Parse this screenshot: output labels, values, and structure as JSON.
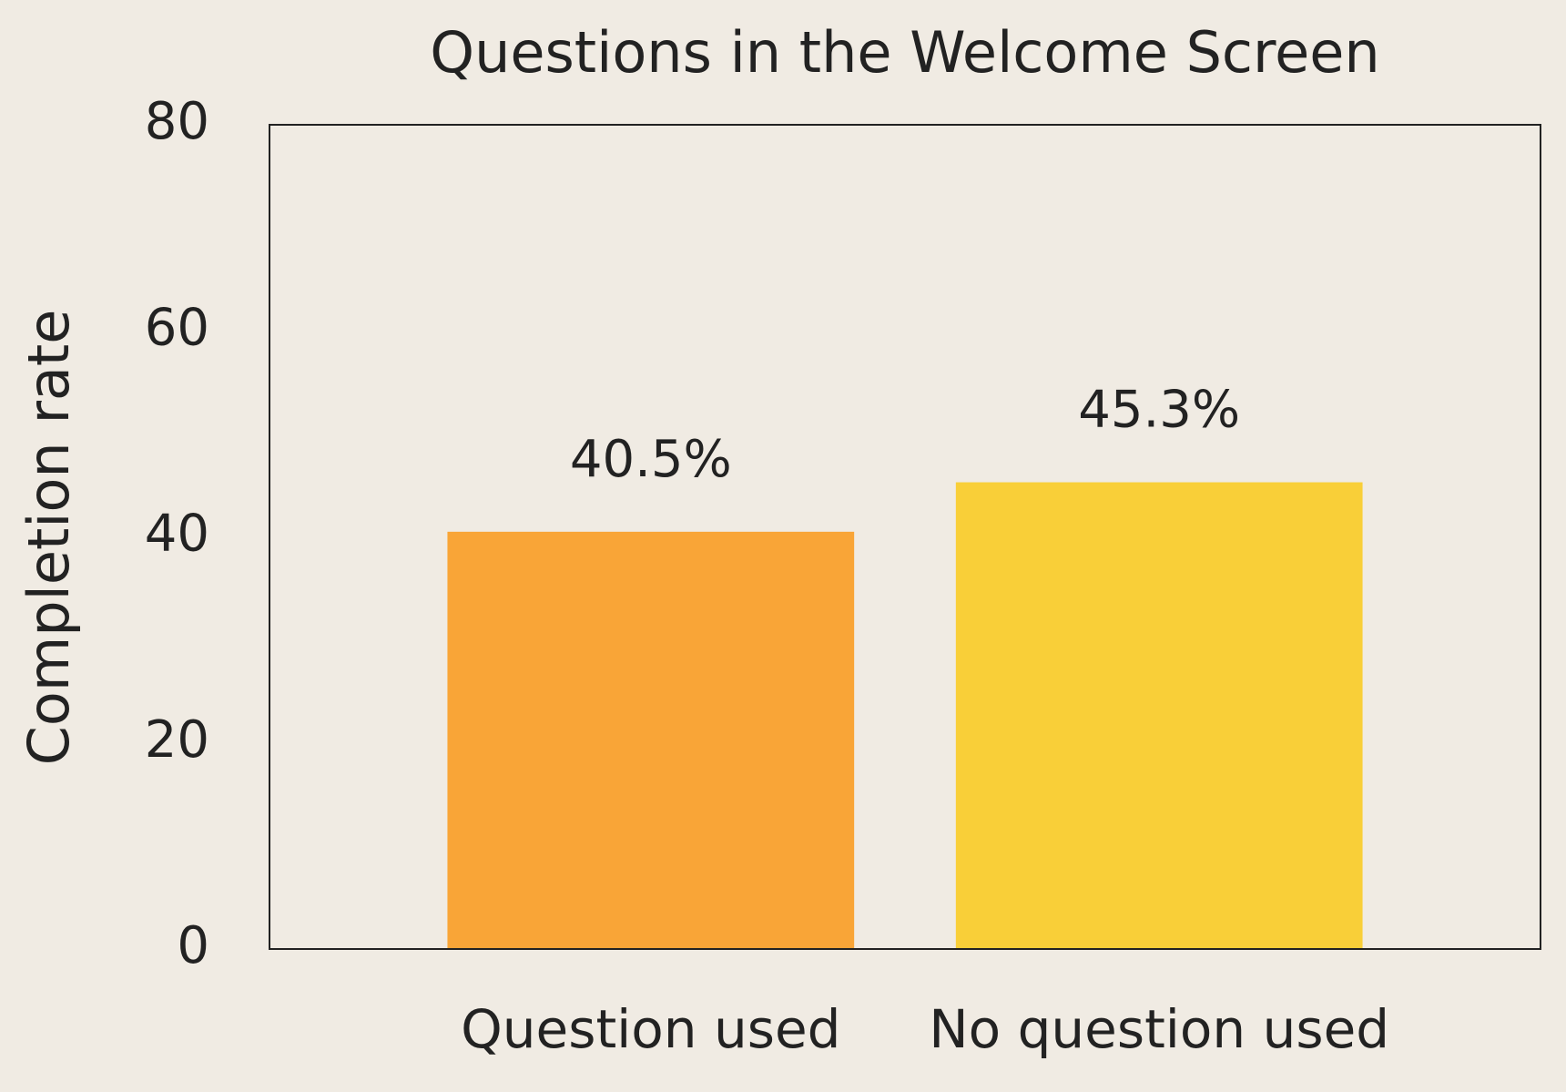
{
  "chart_data": {
    "type": "bar",
    "title": "Questions in the Welcome Screen",
    "y_label": "Completion rate",
    "categories": [
      "Question used",
      "No question used"
    ],
    "values": [
      40.5,
      45.3
    ],
    "value_labels": [
      "40.5%",
      "45.3%"
    ],
    "colors": [
      "#f9a537",
      "#f9cf38"
    ],
    "ylim": [
      0,
      80
    ],
    "yticks": [
      0,
      20,
      40,
      60,
      80
    ],
    "grid": false
  }
}
